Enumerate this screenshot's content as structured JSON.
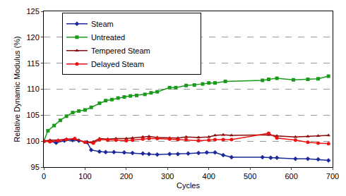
{
  "chart_data": {
    "type": "line",
    "x_label": "Cycles",
    "y_label": "Relative Dynamic Modulus (%)",
    "xlim": [
      0,
      700
    ],
    "xticks": [
      0,
      100,
      200,
      300,
      400,
      500,
      600,
      700
    ],
    "ylim": [
      95,
      125
    ],
    "yticks": [
      95,
      100,
      105,
      110,
      115,
      120,
      125
    ],
    "grid": true,
    "legend": "upper center",
    "series": [
      {
        "name": "Steam",
        "color": "#1a2a9a",
        "marker": "diamond",
        "line_style": "solid",
        "x": [
          0,
          15,
          30,
          50,
          70,
          85,
          105,
          115,
          135,
          150,
          170,
          195,
          215,
          240,
          255,
          275,
          305,
          325,
          350,
          375,
          395,
          415,
          435,
          455,
          530,
          550,
          565,
          610,
          640,
          665,
          690
        ],
        "values": [
          100,
          100,
          99.7,
          100.1,
          100.2,
          100.1,
          99.8,
          98.3,
          98,
          97.9,
          97.9,
          97.8,
          97.7,
          97.6,
          97.5,
          97.4,
          97.5,
          97.5,
          97.6,
          97.7,
          97.8,
          97.8,
          97.3,
          96.9,
          96.9,
          96.8,
          96.8,
          96.6,
          96.6,
          96.5,
          96.3
        ]
      },
      {
        "name": "Untreated",
        "color": "#1a9a1a",
        "marker": "square",
        "line_style": "solid",
        "x": [
          0,
          10,
          25,
          40,
          55,
          70,
          85,
          100,
          115,
          135,
          150,
          165,
          180,
          195,
          210,
          225,
          245,
          260,
          275,
          305,
          320,
          345,
          365,
          385,
          400,
          415,
          440,
          530,
          545,
          565,
          605,
          640,
          665,
          690
        ],
        "values": [
          100,
          102,
          103,
          104,
          104.8,
          105.5,
          105.8,
          106,
          106.5,
          107.3,
          107.8,
          108,
          108.3,
          108.5,
          108.7,
          108.8,
          109,
          109.3,
          109.5,
          110.3,
          110.3,
          110.7,
          110.8,
          111,
          111.2,
          111.2,
          111.5,
          111.7,
          111.9,
          112.1,
          111.8,
          111.9,
          112,
          112.5
        ]
      },
      {
        "name": "Tempered Steam",
        "color": "#8b0a0a",
        "marker": "triangle",
        "line_style": "solid",
        "x": [
          0,
          15,
          35,
          55,
          75,
          100,
          120,
          135,
          155,
          175,
          200,
          215,
          240,
          255,
          275,
          305,
          325,
          345,
          375,
          400,
          415,
          435,
          455,
          545,
          565,
          610,
          640,
          665,
          690
        ],
        "values": [
          100,
          100.2,
          100.2,
          100.4,
          100.4,
          99.8,
          99.9,
          100.5,
          100.4,
          100.5,
          100.5,
          100.6,
          100.8,
          100.9,
          100.7,
          100.6,
          100.6,
          100.8,
          100.7,
          100.8,
          101.1,
          101.2,
          101.1,
          101.2,
          101,
          100.8,
          100.9,
          101,
          101.1
        ]
      },
      {
        "name": "Delayed Steam",
        "color": "#ee1111",
        "marker": "circle",
        "line_style": "solid",
        "x": [
          0,
          15,
          35,
          55,
          75,
          100,
          120,
          135,
          155,
          175,
          200,
          215,
          240,
          255,
          275,
          305,
          325,
          345,
          375,
          400,
          415,
          435,
          455,
          545,
          565,
          610,
          640,
          665,
          690
        ],
        "values": [
          100,
          99.9,
          100.1,
          100.3,
          100.5,
          99.8,
          99.6,
          100.3,
          100.2,
          100.2,
          100.1,
          100.2,
          100.4,
          100.5,
          100.5,
          100.4,
          100.3,
          100.3,
          100.1,
          100.2,
          100.3,
          100.3,
          100.3,
          101.5,
          100.6,
          100.2,
          99.8,
          99.6,
          99.5
        ]
      }
    ]
  }
}
